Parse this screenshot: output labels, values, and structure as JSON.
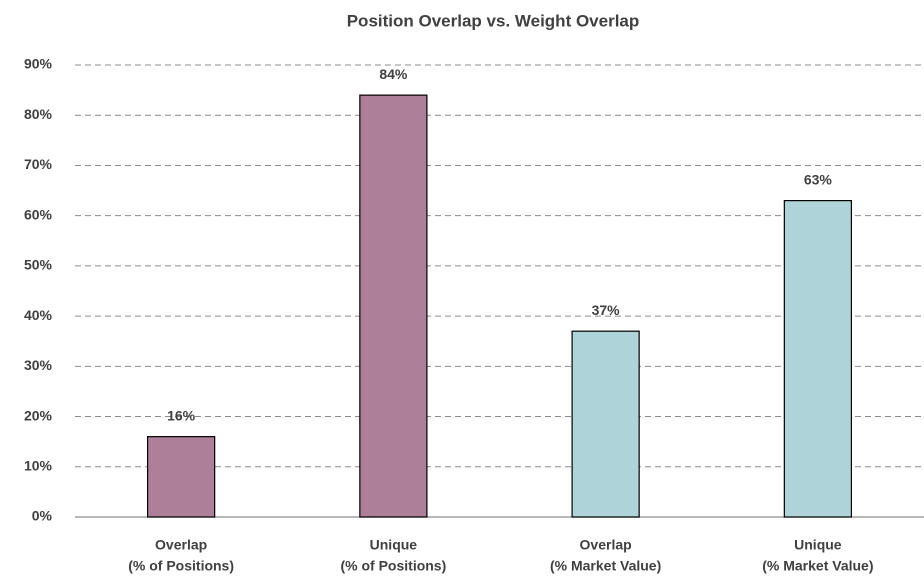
{
  "chart_data": {
    "type": "bar",
    "title": "Position Overlap vs. Weight Overlap",
    "categories": [
      [
        "Overlap",
        "(% of Positions)"
      ],
      [
        "Unique",
        "(% of Positions)"
      ],
      [
        "Overlap",
        "(% Market Value)"
      ],
      [
        "Unique",
        "(% Market Value)"
      ]
    ],
    "values": [
      16,
      84,
      37,
      63
    ],
    "value_labels": [
      "16%",
      "84%",
      "37%",
      "63%"
    ],
    "colors": [
      "#ae7f98",
      "#ae7f98",
      "#aed3d8",
      "#aed3d8"
    ],
    "ylim": [
      0,
      90
    ],
    "yticks": [
      {
        "value": 0,
        "label": "0%"
      },
      {
        "value": 10,
        "label": "10%"
      },
      {
        "value": 20,
        "label": "20%"
      },
      {
        "value": 30,
        "label": "30%"
      },
      {
        "value": 40,
        "label": "40%"
      },
      {
        "value": 50,
        "label": "50%"
      },
      {
        "value": 60,
        "label": "60%"
      },
      {
        "value": 70,
        "label": "70%"
      },
      {
        "value": 80,
        "label": "80%"
      },
      {
        "value": 90,
        "label": "90%"
      }
    ],
    "grid": true
  }
}
